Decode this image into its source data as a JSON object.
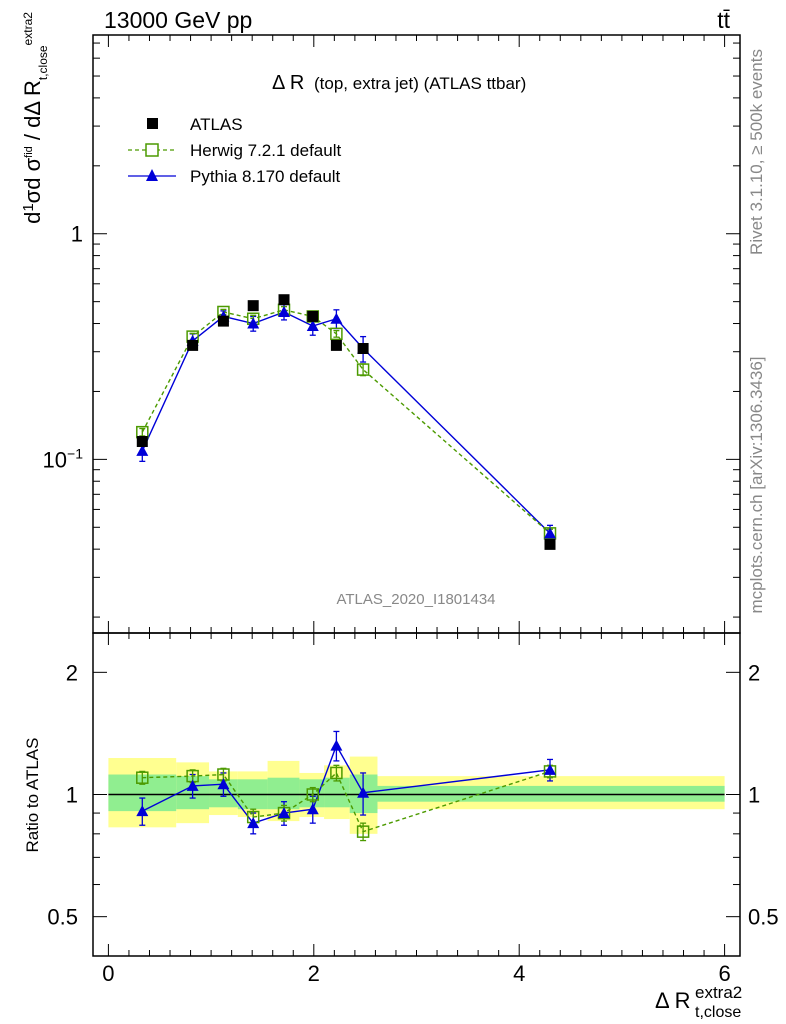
{
  "header": {
    "left": "13000 GeV pp",
    "right": "tt̄"
  },
  "side_labels": {
    "rivet": "Rivet 3.1.10, ≥ 500k events",
    "mcplots": "mcplots.cern.ch [arXiv:1306.3436]"
  },
  "chart_data": {
    "type": "scatter",
    "title": "Δ R (top, extra jet) (ATLAS ttbar)",
    "watermark": "ATLAS_2020_I1801434",
    "ylabel_main": "1/σ dσ^fid / dΔ R_t,close^extra2",
    "ylabel_ratio": "Ratio to ATLAS",
    "xlabel": "Δ R_t,close^extra2",
    "xlim": [
      -0.15,
      6.15
    ],
    "ylim_main": [
      0.017,
      7.6
    ],
    "ylog_main": true,
    "ylim_ratio": [
      0.4,
      2.5
    ],
    "ylog_ratio": true,
    "x_ticks": [
      0,
      2,
      4,
      6
    ],
    "y_ticks_main": [
      {
        "value": 1,
        "label": "1"
      },
      {
        "value": 0.1,
        "label": "10^-1"
      }
    ],
    "y_ticks_ratio": [
      {
        "value": 2,
        "label": "2"
      },
      {
        "value": 1,
        "label": "1"
      },
      {
        "value": 0.5,
        "label": "0.5"
      }
    ],
    "legend_position": "top-left",
    "x": [
      0.33,
      0.82,
      1.12,
      1.41,
      1.71,
      1.99,
      2.22,
      2.48,
      4.3
    ],
    "series": [
      {
        "name": "ATLAS",
        "color": "#000000",
        "marker": "square-filled",
        "values": [
          0.12,
          0.32,
          0.41,
          0.48,
          0.51,
          0.43,
          0.32,
          0.31,
          0.042
        ]
      },
      {
        "name": "Herwig 7.2.1 default",
        "color": "#4c9a00",
        "marker": "square-open",
        "dashed": true,
        "values": [
          0.132,
          0.35,
          0.45,
          0.42,
          0.46,
          0.43,
          0.36,
          0.25,
          0.047
        ],
        "errors": [
          0.005,
          0.012,
          0.012,
          0.015,
          0.015,
          0.014,
          0.012,
          0.015,
          0.002
        ],
        "ratio": [
          1.1,
          1.11,
          1.12,
          0.88,
          0.9,
          1.0,
          1.13,
          0.81,
          1.14
        ],
        "ratio_errors": [
          0.04,
          0.04,
          0.04,
          0.04,
          0.04,
          0.04,
          0.05,
          0.04,
          0.04
        ]
      },
      {
        "name": "Pythia 8.170 default",
        "color": "#0000d8",
        "marker": "triangle-filled",
        "values": [
          0.109,
          0.335,
          0.43,
          0.4,
          0.45,
          0.39,
          0.42,
          0.31,
          0.047
        ],
        "errors": [
          0.011,
          0.025,
          0.025,
          0.03,
          0.035,
          0.035,
          0.04,
          0.04,
          0.004
        ],
        "ratio": [
          0.91,
          1.05,
          1.06,
          0.85,
          0.9,
          0.92,
          1.32,
          1.01,
          1.15
        ],
        "ratio_errors": [
          0.07,
          0.07,
          0.07,
          0.05,
          0.06,
          0.07,
          0.11,
          0.12,
          0.07
        ]
      }
    ],
    "uncertainty_bands": {
      "bins": [
        {
          "lo": 0.0,
          "hi": 0.66,
          "inner": [
            0.91,
            1.12
          ],
          "outer": [
            0.83,
            1.23
          ]
        },
        {
          "lo": 0.66,
          "hi": 0.98,
          "inner": [
            0.92,
            1.11
          ],
          "outer": [
            0.85,
            1.2
          ]
        },
        {
          "lo": 0.98,
          "hi": 1.26,
          "inner": [
            0.93,
            1.09
          ],
          "outer": [
            0.89,
            1.14
          ]
        },
        {
          "lo": 1.26,
          "hi": 1.55,
          "inner": [
            0.92,
            1.09
          ],
          "outer": [
            0.88,
            1.14
          ]
        },
        {
          "lo": 1.55,
          "hi": 1.86,
          "inner": [
            0.92,
            1.1
          ],
          "outer": [
            0.86,
            1.21
          ]
        },
        {
          "lo": 1.86,
          "hi": 2.1,
          "inner": [
            0.93,
            1.09
          ],
          "outer": [
            0.88,
            1.13
          ]
        },
        {
          "lo": 2.1,
          "hi": 2.35,
          "inner": [
            0.93,
            1.1
          ],
          "outer": [
            0.87,
            1.18
          ]
        },
        {
          "lo": 2.35,
          "hi": 2.62,
          "inner": [
            0.9,
            1.12
          ],
          "outer": [
            0.8,
            1.24
          ]
        },
        {
          "lo": 2.62,
          "hi": 6.0,
          "inner": [
            0.96,
            1.05
          ],
          "outer": [
            0.92,
            1.11
          ]
        }
      ],
      "inner_color": "#90ee90",
      "outer_color": "#ffff90"
    }
  }
}
